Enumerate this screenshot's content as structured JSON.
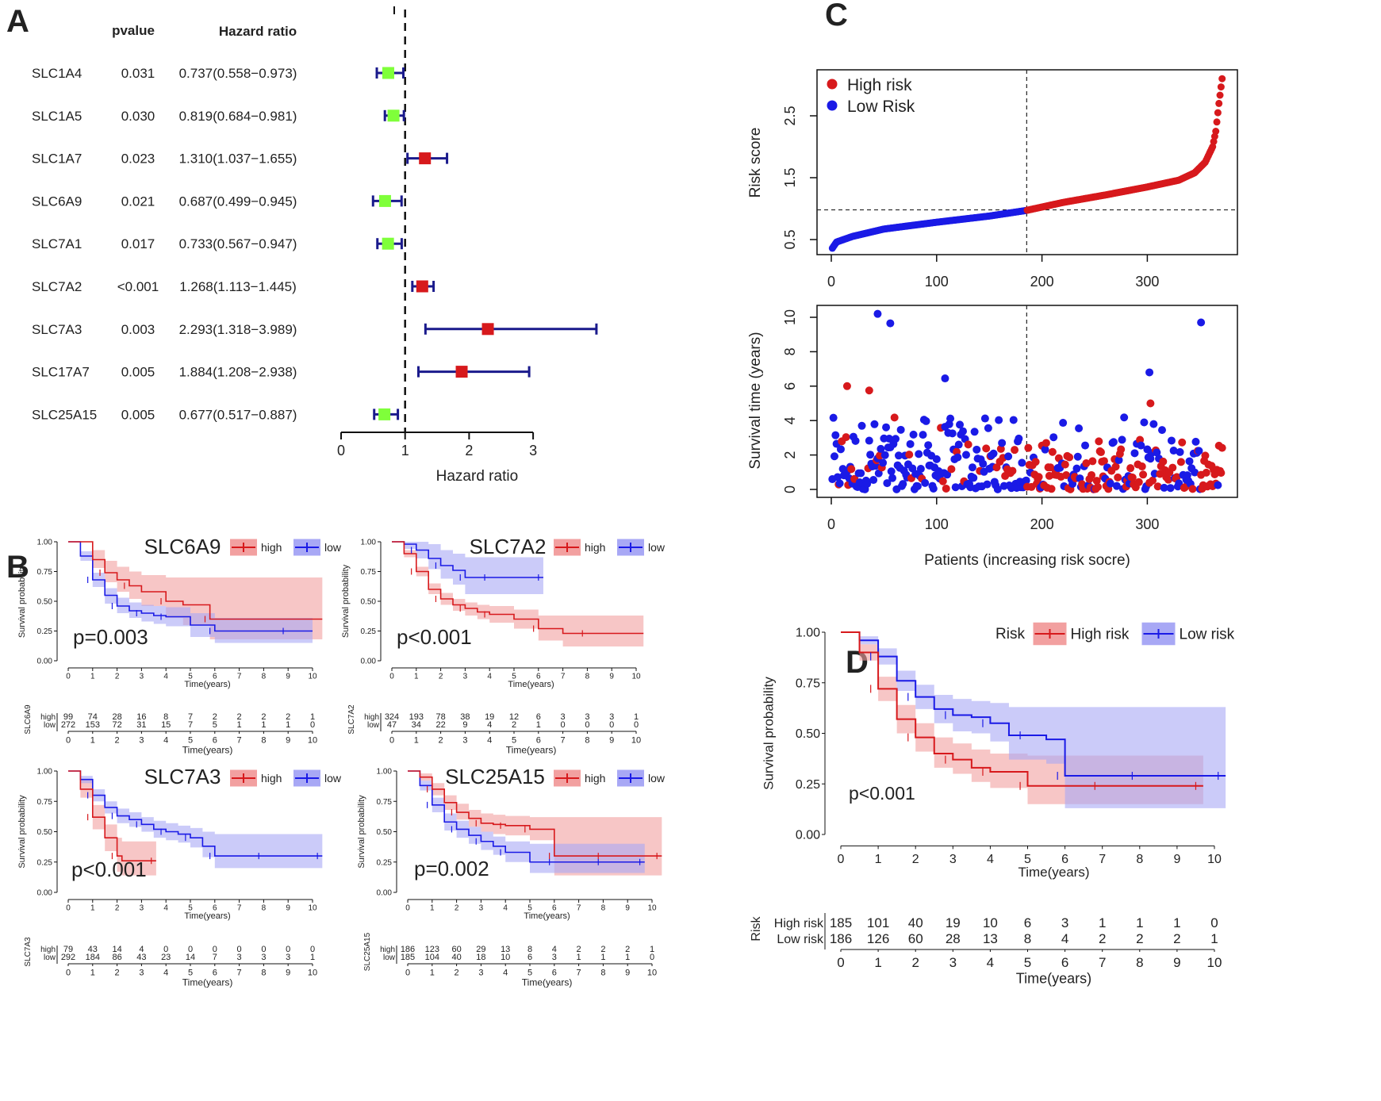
{
  "colors": {
    "high": "#d7191c",
    "low": "#1a1ae6",
    "green": "#7fff3a",
    "navy": "#1a1a8c",
    "highfill": "#f2a0a0",
    "lowfill": "#a8a8f5"
  },
  "panel_letters": {
    "a": "A",
    "b": "B",
    "c": "C",
    "d": "D"
  },
  "chart_data": [
    {
      "id": "forest",
      "type": "forest",
      "col_headers": {
        "pvalue": "pvalue",
        "hr": "Hazard ratio"
      },
      "xlabel": "Hazard ratio",
      "xlim": [
        0,
        3
      ],
      "xticks": [
        "0",
        "1",
        "2",
        "3"
      ],
      "ref": 1,
      "rows": [
        {
          "gene": "SLC1A4",
          "p": "0.031",
          "text": "0.737(0.558−0.973)",
          "hr": 0.737,
          "lo": 0.558,
          "hi": 0.973
        },
        {
          "gene": "SLC1A5",
          "p": "0.030",
          "text": "0.819(0.684−0.981)",
          "hr": 0.819,
          "lo": 0.684,
          "hi": 0.981
        },
        {
          "gene": "SLC1A7",
          "p": "0.023",
          "text": "1.310(1.037−1.655)",
          "hr": 1.31,
          "lo": 1.037,
          "hi": 1.655
        },
        {
          "gene": "SLC6A9",
          "p": "0.021",
          "text": "0.687(0.499−0.945)",
          "hr": 0.687,
          "lo": 0.499,
          "hi": 0.945
        },
        {
          "gene": "SLC7A1",
          "p": "0.017",
          "text": "0.733(0.567−0.947)",
          "hr": 0.733,
          "lo": 0.567,
          "hi": 0.947
        },
        {
          "gene": "SLC7A2",
          "p": "<0.001",
          "text": "1.268(1.113−1.445)",
          "hr": 1.268,
          "lo": 1.113,
          "hi": 1.445
        },
        {
          "gene": "SLC7A3",
          "p": "0.003",
          "text": "2.293(1.318−3.989)",
          "hr": 2.293,
          "lo": 1.318,
          "hi": 3.989
        },
        {
          "gene": "SLC17A7",
          "p": "0.005",
          "text": "1.884(1.208−2.938)",
          "hr": 1.884,
          "lo": 1.208,
          "hi": 2.938
        },
        {
          "gene": "SLC25A15",
          "p": "0.005",
          "text": "0.677(0.517−0.887)",
          "hr": 0.677,
          "lo": 0.517,
          "hi": 0.887
        }
      ]
    },
    {
      "id": "risk",
      "type": "scatter",
      "ylabel": "Risk score",
      "ylim": [
        0.3,
        3.2
      ],
      "yticks": [
        "0.5",
        "1.5",
        "2.5"
      ],
      "ytick_values": [
        0.5,
        1.5,
        2.5
      ],
      "xlim": [
        0,
        371
      ],
      "xticks": [
        "0",
        "100",
        "200",
        "300"
      ],
      "xtick_values": [
        0,
        100,
        200,
        300
      ],
      "cutoff_index": 185.5,
      "cutoff_score": 0.98,
      "legend": [
        "High risk",
        "Low Risk"
      ],
      "curve_knots": [
        [
          1,
          0.36
        ],
        [
          5,
          0.46
        ],
        [
          20,
          0.55
        ],
        [
          50,
          0.67
        ],
        [
          100,
          0.78
        ],
        [
          150,
          0.88
        ],
        [
          185,
          0.97
        ],
        [
          220,
          1.1
        ],
        [
          260,
          1.22
        ],
        [
          300,
          1.35
        ],
        [
          330,
          1.46
        ],
        [
          345,
          1.58
        ],
        [
          355,
          1.75
        ],
        [
          362,
          2.0
        ],
        [
          365,
          2.25
        ],
        [
          368,
          2.7
        ],
        [
          371,
          3.1
        ]
      ]
    },
    {
      "id": "survival",
      "type": "scatter",
      "ylabel": "Survival time (years)",
      "ylim": [
        0,
        10.3
      ],
      "yticks": [
        "0",
        "2",
        "4",
        "6",
        "8",
        "10"
      ],
      "ytick_values": [
        0,
        2,
        4,
        6,
        8,
        10
      ],
      "xlim": [
        0,
        371
      ],
      "xticks": [
        "0",
        "100",
        "200",
        "300"
      ],
      "xtick_values": [
        0,
        100,
        200,
        300
      ],
      "xlabel": "Patients (increasing risk socre)",
      "cutoff_index": 185.5
    },
    {
      "id": "km_SLC6A9",
      "type": "km",
      "title": "SLC6A9",
      "pvalue": "p=0.003",
      "legend": [
        "high",
        "low"
      ],
      "xlabel": "Time(years)",
      "ylabel": "Survival probability",
      "xmax": 10,
      "yticks": [
        "0.00",
        "0.25",
        "0.50",
        "0.75",
        "1.00"
      ],
      "xticks": [
        "0",
        "1",
        "2",
        "3",
        "4",
        "5",
        "6",
        "7",
        "8",
        "9",
        "10"
      ],
      "high": {
        "t": [
          0,
          1,
          1.5,
          2,
          2.5,
          3,
          4,
          4.7,
          5.8,
          10.4
        ],
        "s": [
          1,
          0.85,
          0.74,
          0.68,
          0.63,
          0.58,
          0.5,
          0.47,
          0.35,
          0.35
        ],
        "lo": [
          1,
          0.78,
          0.66,
          0.58,
          0.52,
          0.46,
          0.36,
          0.3,
          0.18,
          0.18
        ],
        "hi": [
          1,
          0.93,
          0.84,
          0.79,
          0.75,
          0.72,
          0.7,
          0.7,
          0.7,
          0.7
        ]
      },
      "low": {
        "t": [
          0,
          0.5,
          1,
          1.5,
          2,
          2.5,
          3,
          3.5,
          4,
          5,
          6,
          7,
          9,
          10
        ],
        "s": [
          1,
          0.88,
          0.68,
          0.55,
          0.46,
          0.42,
          0.4,
          0.38,
          0.37,
          0.3,
          0.25,
          0.25,
          0.25,
          0.25
        ],
        "lo": [
          1,
          0.84,
          0.62,
          0.48,
          0.4,
          0.36,
          0.33,
          0.31,
          0.29,
          0.2,
          0.15,
          0.15,
          0.15,
          0.15
        ],
        "hi": [
          1,
          0.92,
          0.74,
          0.61,
          0.53,
          0.49,
          0.47,
          0.46,
          0.45,
          0.4,
          0.36,
          0.36,
          0.36,
          0.36
        ]
      },
      "risk_label": "SLC6A9",
      "high_label": "high",
      "low_label": "low",
      "high_counts": [
        "99",
        "74",
        "28",
        "16",
        "8",
        "7",
        "2",
        "2",
        "2",
        "2",
        "1"
      ],
      "low_counts": [
        "272",
        "153",
        "72",
        "31",
        "15",
        "7",
        "5",
        "1",
        "1",
        "1",
        "0"
      ]
    },
    {
      "id": "km_SLC7A2",
      "type": "km",
      "title": "SLC7A2",
      "pvalue": "p<0.001",
      "legend": [
        "high",
        "low"
      ],
      "xlabel": "Time(years)",
      "ylabel": "Survival probability",
      "xmax": 10,
      "yticks": [
        "0.00",
        "0.25",
        "0.50",
        "0.75",
        "1.00"
      ],
      "xticks": [
        "0",
        "1",
        "2",
        "3",
        "4",
        "5",
        "6",
        "7",
        "8",
        "9",
        "10"
      ],
      "high": {
        "t": [
          0,
          0.5,
          1,
          1.5,
          2,
          2.5,
          3,
          3.5,
          4,
          5,
          6,
          7,
          8,
          10.3
        ],
        "s": [
          1,
          0.9,
          0.75,
          0.6,
          0.52,
          0.47,
          0.44,
          0.41,
          0.39,
          0.35,
          0.27,
          0.23,
          0.23,
          0.23
        ],
        "lo": [
          1,
          0.87,
          0.71,
          0.56,
          0.47,
          0.42,
          0.38,
          0.35,
          0.32,
          0.27,
          0.17,
          0.12,
          0.12,
          0.12
        ],
        "hi": [
          1,
          0.93,
          0.79,
          0.65,
          0.57,
          0.52,
          0.49,
          0.47,
          0.46,
          0.43,
          0.38,
          0.38,
          0.38,
          0.38
        ]
      },
      "low": {
        "t": [
          0,
          0.5,
          1,
          1.5,
          2,
          2.5,
          3,
          3.5,
          4,
          5,
          6.2
        ],
        "s": [
          1,
          0.98,
          0.93,
          0.86,
          0.8,
          0.76,
          0.7,
          0.7,
          0.7,
          0.7,
          0.7
        ],
        "lo": [
          1,
          0.94,
          0.86,
          0.77,
          0.69,
          0.64,
          0.56,
          0.56,
          0.56,
          0.56,
          0.56
        ],
        "hi": [
          1,
          1,
          1,
          0.98,
          0.93,
          0.9,
          0.87,
          0.87,
          0.87,
          0.87,
          0.87
        ]
      },
      "risk_label": "SLC7A2",
      "high_label": "high",
      "low_label": "low",
      "high_counts": [
        "324",
        "193",
        "78",
        "38",
        "19",
        "12",
        "6",
        "3",
        "3",
        "3",
        "1"
      ],
      "low_counts": [
        "47",
        "34",
        "22",
        "9",
        "4",
        "2",
        "1",
        "0",
        "0",
        "0",
        "0"
      ]
    },
    {
      "id": "km_SLC7A3",
      "type": "km",
      "title": "SLC7A3",
      "pvalue": "p<0.001",
      "legend": [
        "high",
        "low"
      ],
      "xlabel": "Time(years)",
      "ylabel": "Survival probability",
      "xmax": 10,
      "yticks": [
        "0.00",
        "0.25",
        "0.50",
        "0.75",
        "1.00"
      ],
      "xticks": [
        "0",
        "1",
        "2",
        "3",
        "4",
        "5",
        "6",
        "7",
        "8",
        "9",
        "10"
      ],
      "high": {
        "t": [
          0,
          0.5,
          1,
          1.5,
          2,
          2.2,
          3.6
        ],
        "s": [
          1,
          0.85,
          0.62,
          0.45,
          0.3,
          0.26,
          0.26
        ],
        "lo": [
          1,
          0.78,
          0.52,
          0.34,
          0.17,
          0.14,
          0.14
        ],
        "hi": [
          1,
          0.93,
          0.72,
          0.56,
          0.45,
          0.42,
          0.42
        ]
      },
      "low": {
        "t": [
          0,
          0.5,
          1,
          1.5,
          2,
          2.5,
          3,
          3.5,
          4,
          4.5,
          5,
          5.5,
          6,
          7,
          8,
          9,
          10.4
        ],
        "s": [
          1,
          0.93,
          0.8,
          0.7,
          0.63,
          0.6,
          0.56,
          0.52,
          0.5,
          0.48,
          0.45,
          0.38,
          0.3,
          0.3,
          0.3,
          0.3,
          0.3
        ],
        "lo": [
          1,
          0.9,
          0.75,
          0.65,
          0.57,
          0.54,
          0.5,
          0.45,
          0.43,
          0.41,
          0.37,
          0.29,
          0.2,
          0.2,
          0.2,
          0.2,
          0.2
        ],
        "hi": [
          1,
          0.96,
          0.85,
          0.75,
          0.69,
          0.66,
          0.62,
          0.59,
          0.57,
          0.55,
          0.53,
          0.5,
          0.48,
          0.48,
          0.48,
          0.48,
          0.48
        ]
      },
      "risk_label": "SLC7A3",
      "high_label": "high",
      "low_label": "low",
      "high_counts": [
        "79",
        "43",
        "14",
        "4",
        "0",
        "0",
        "0",
        "0",
        "0",
        "0",
        "0"
      ],
      "low_counts": [
        "292",
        "184",
        "86",
        "43",
        "23",
        "14",
        "7",
        "3",
        "3",
        "3",
        "1"
      ]
    },
    {
      "id": "km_SLC25A15",
      "type": "km",
      "title": "SLC25A15",
      "pvalue": "p=0.002",
      "legend": [
        "high",
        "low"
      ],
      "xlabel": "Time(years)",
      "ylabel": "Survival probability",
      "xmax": 10,
      "yticks": [
        "0.00",
        "0.25",
        "0.50",
        "0.75",
        "1.00"
      ],
      "xticks": [
        "0",
        "1",
        "2",
        "3",
        "4",
        "5",
        "6",
        "7",
        "8",
        "9",
        "10"
      ],
      "high": {
        "t": [
          0,
          0.5,
          1,
          1.5,
          2,
          2.5,
          3,
          3.5,
          4,
          4.5,
          5,
          5.6,
          6,
          7,
          8,
          9,
          10.4
        ],
        "s": [
          1,
          0.95,
          0.85,
          0.74,
          0.66,
          0.61,
          0.57,
          0.56,
          0.55,
          0.55,
          0.52,
          0.52,
          0.3,
          0.3,
          0.3,
          0.3,
          0.3
        ],
        "lo": [
          1,
          0.92,
          0.8,
          0.68,
          0.6,
          0.54,
          0.5,
          0.48,
          0.47,
          0.47,
          0.43,
          0.43,
          0.14,
          0.14,
          0.14,
          0.14,
          0.14
        ],
        "hi": [
          1,
          0.98,
          0.9,
          0.8,
          0.73,
          0.68,
          0.65,
          0.64,
          0.63,
          0.63,
          0.62,
          0.62,
          0.62,
          0.62,
          0.62,
          0.62,
          0.62
        ]
      },
      "low": {
        "t": [
          0,
          0.5,
          1,
          1.5,
          2,
          2.5,
          3,
          3.5,
          4,
          5,
          6,
          7,
          8,
          9,
          9.7
        ],
        "s": [
          1,
          0.88,
          0.72,
          0.58,
          0.52,
          0.47,
          0.42,
          0.38,
          0.33,
          0.25,
          0.25,
          0.25,
          0.25,
          0.25,
          0.25
        ],
        "lo": [
          1,
          0.84,
          0.66,
          0.51,
          0.45,
          0.4,
          0.35,
          0.31,
          0.25,
          0.16,
          0.16,
          0.16,
          0.16,
          0.16,
          0.16
        ],
        "hi": [
          1,
          0.92,
          0.78,
          0.65,
          0.59,
          0.54,
          0.5,
          0.46,
          0.42,
          0.4,
          0.4,
          0.4,
          0.4,
          0.4,
          0.4
        ]
      },
      "risk_label": "SLC25A15",
      "high_label": "high",
      "low_label": "low",
      "high_counts": [
        "186",
        "123",
        "60",
        "29",
        "13",
        "8",
        "4",
        "2",
        "2",
        "2",
        "1"
      ],
      "low_counts": [
        "185",
        "104",
        "40",
        "18",
        "10",
        "6",
        "3",
        "1",
        "1",
        "1",
        "0"
      ]
    },
    {
      "id": "km_risk",
      "type": "km",
      "title": "",
      "pvalue": "p<0.001",
      "legend_title": "Risk",
      "legend": [
        "High risk",
        "Low risk"
      ],
      "xlabel": "Time(years)",
      "ylabel": "Survival probability",
      "xmax": 10.3,
      "yticks": [
        "0.00",
        "0.25",
        "0.50",
        "0.75",
        "1.00"
      ],
      "xticks": [
        "0",
        "1",
        "2",
        "3",
        "4",
        "5",
        "6",
        "7",
        "8",
        "9",
        "10"
      ],
      "high": {
        "t": [
          0,
          0.5,
          1,
          1.5,
          2,
          2.5,
          3,
          3.5,
          4,
          4.5,
          5,
          6,
          7,
          8,
          9.7
        ],
        "s": [
          1,
          0.9,
          0.72,
          0.57,
          0.48,
          0.4,
          0.37,
          0.33,
          0.31,
          0.31,
          0.24,
          0.24,
          0.24,
          0.24,
          0.24
        ],
        "lo": [
          1,
          0.86,
          0.66,
          0.5,
          0.41,
          0.33,
          0.3,
          0.26,
          0.23,
          0.23,
          0.15,
          0.15,
          0.15,
          0.15,
          0.15
        ],
        "hi": [
          1,
          0.94,
          0.78,
          0.64,
          0.55,
          0.48,
          0.45,
          0.42,
          0.4,
          0.4,
          0.39,
          0.39,
          0.39,
          0.39,
          0.39
        ]
      },
      "low": {
        "t": [
          0,
          0.5,
          1,
          1.5,
          2,
          2.5,
          3,
          3.5,
          4,
          4.5,
          5,
          5.5,
          6,
          7,
          8,
          9,
          10.3
        ],
        "s": [
          1,
          0.96,
          0.88,
          0.76,
          0.68,
          0.62,
          0.59,
          0.58,
          0.55,
          0.49,
          0.49,
          0.47,
          0.29,
          0.29,
          0.29,
          0.29,
          0.29
        ],
        "lo": [
          1,
          0.94,
          0.84,
          0.71,
          0.62,
          0.55,
          0.51,
          0.5,
          0.46,
          0.37,
          0.37,
          0.35,
          0.13,
          0.13,
          0.13,
          0.13,
          0.13
        ],
        "hi": [
          1,
          0.98,
          0.92,
          0.81,
          0.74,
          0.69,
          0.67,
          0.66,
          0.65,
          0.63,
          0.63,
          0.63,
          0.63,
          0.63,
          0.63,
          0.63,
          0.63
        ]
      },
      "risk_label": "Risk",
      "high_label": "High risk",
      "low_label": "Low risk",
      "high_counts": [
        "185",
        "101",
        "40",
        "19",
        "10",
        "6",
        "3",
        "1",
        "1",
        "1",
        "0"
      ],
      "low_counts": [
        "186",
        "126",
        "60",
        "28",
        "13",
        "8",
        "4",
        "2",
        "2",
        "2",
        "1"
      ]
    }
  ]
}
